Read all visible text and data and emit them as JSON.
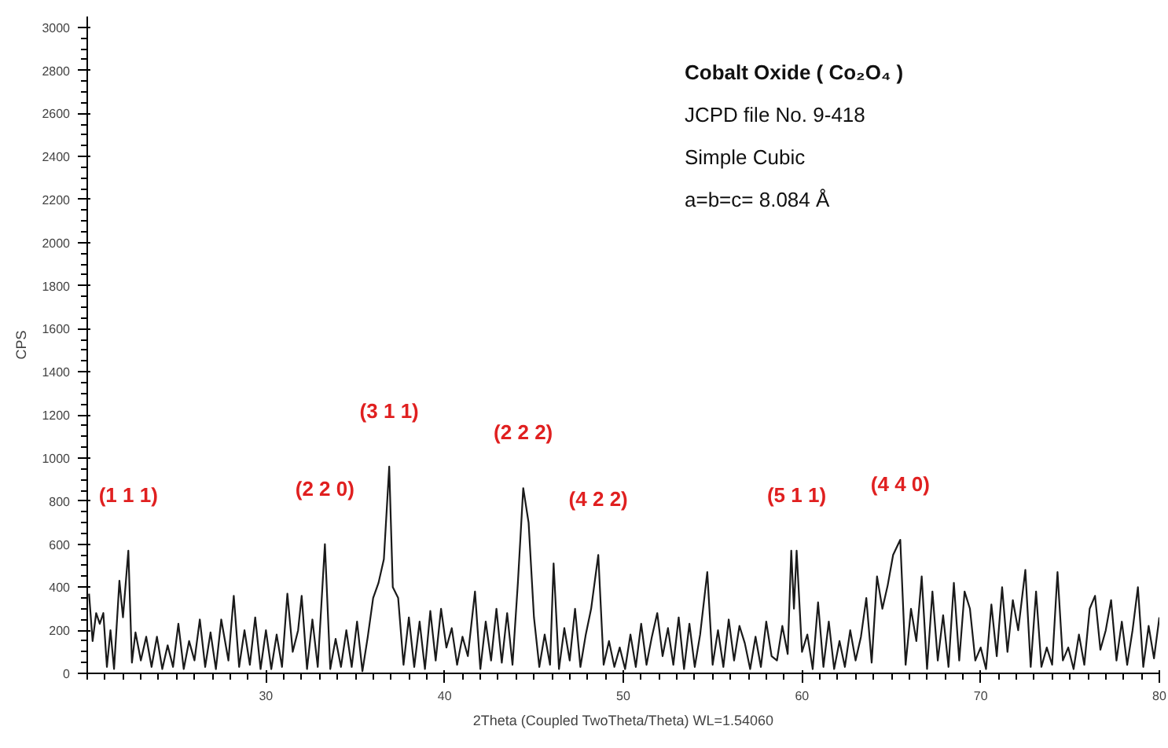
{
  "chart_data": {
    "type": "line",
    "xlabel": "2Theta (Coupled TwoTheta/Theta) WL=1.54060",
    "ylabel": "CPS",
    "xlim": [
      20,
      80
    ],
    "ylim": [
      0,
      3050
    ],
    "xticks": [
      30,
      40,
      50,
      60,
      70,
      80
    ],
    "yticks": [
      0,
      200,
      400,
      600,
      800,
      1000,
      1200,
      1400,
      1600,
      1800,
      2000,
      2200,
      2400,
      2600,
      2800,
      3000
    ],
    "grid": false,
    "marker": "none",
    "line_style": "solid",
    "series": [
      {
        "color": "#1a1a1a",
        "x": [
          20.1,
          20.3,
          20.5,
          20.7,
          20.9,
          21.1,
          21.3,
          21.5,
          21.8,
          22.0,
          22.3,
          22.5,
          22.7,
          23.0,
          23.3,
          23.6,
          23.9,
          24.2,
          24.5,
          24.8,
          25.1,
          25.4,
          25.7,
          26.0,
          26.3,
          26.6,
          26.9,
          27.2,
          27.5,
          27.9,
          28.2,
          28.5,
          28.8,
          29.1,
          29.4,
          29.7,
          30.0,
          30.3,
          30.6,
          30.9,
          31.2,
          31.5,
          31.8,
          32.0,
          32.3,
          32.6,
          32.9,
          33.3,
          33.6,
          33.9,
          34.2,
          34.5,
          34.8,
          35.1,
          35.4,
          35.7,
          36.0,
          36.3,
          36.6,
          36.9,
          37.1,
          37.4,
          37.7,
          38.0,
          38.3,
          38.6,
          38.9,
          39.2,
          39.5,
          39.8,
          40.1,
          40.4,
          40.7,
          41.0,
          41.3,
          41.7,
          42.0,
          42.3,
          42.6,
          42.9,
          43.2,
          43.5,
          43.8,
          44.1,
          44.4,
          44.7,
          45.0,
          45.3,
          45.6,
          45.9,
          46.1,
          46.4,
          46.7,
          47.0,
          47.3,
          47.6,
          47.9,
          48.2,
          48.6,
          48.9,
          49.2,
          49.5,
          49.8,
          50.1,
          50.4,
          50.7,
          51.0,
          51.3,
          51.6,
          51.9,
          52.2,
          52.5,
          52.8,
          53.1,
          53.4,
          53.7,
          54.0,
          54.3,
          54.7,
          55.0,
          55.3,
          55.6,
          55.9,
          56.2,
          56.5,
          56.8,
          57.1,
          57.4,
          57.7,
          58.0,
          58.3,
          58.6,
          58.9,
          59.2,
          59.4,
          59.55,
          59.7,
          60.0,
          60.3,
          60.6,
          60.9,
          61.2,
          61.5,
          61.8,
          62.1,
          62.4,
          62.7,
          63.0,
          63.3,
          63.6,
          63.9,
          64.2,
          64.5,
          64.8,
          65.1,
          65.5,
          65.8,
          66.1,
          66.4,
          66.7,
          67.0,
          67.3,
          67.6,
          67.9,
          68.2,
          68.5,
          68.8,
          69.1,
          69.4,
          69.7,
          70.0,
          70.3,
          70.6,
          70.9,
          71.2,
          71.5,
          71.8,
          72.1,
          72.5,
          72.8,
          73.1,
          73.4,
          73.7,
          74.0,
          74.3,
          74.6,
          74.9,
          75.2,
          75.5,
          75.8,
          76.1,
          76.4,
          76.7,
          77.0,
          77.3,
          77.6,
          77.9,
          78.2,
          78.5,
          78.8,
          79.1,
          79.4,
          79.7,
          80.0
        ],
        "values": [
          370,
          150,
          280,
          230,
          280,
          30,
          200,
          20,
          430,
          260,
          570,
          50,
          190,
          60,
          170,
          30,
          170,
          20,
          130,
          30,
          230,
          20,
          150,
          60,
          250,
          30,
          190,
          20,
          250,
          60,
          360,
          30,
          200,
          40,
          260,
          20,
          200,
          20,
          180,
          30,
          370,
          100,
          200,
          360,
          20,
          250,
          30,
          600,
          20,
          160,
          30,
          200,
          30,
          240,
          10,
          170,
          350,
          420,
          530,
          960,
          400,
          350,
          40,
          260,
          30,
          240,
          20,
          290,
          60,
          300,
          120,
          210,
          40,
          170,
          80,
          380,
          20,
          240,
          60,
          300,
          50,
          280,
          40,
          420,
          860,
          700,
          260,
          30,
          180,
          40,
          510,
          20,
          210,
          60,
          300,
          30,
          180,
          300,
          550,
          40,
          150,
          30,
          120,
          20,
          180,
          30,
          230,
          40,
          170,
          280,
          80,
          210,
          40,
          260,
          20,
          230,
          30,
          180,
          470,
          40,
          200,
          30,
          250,
          60,
          220,
          140,
          20,
          170,
          30,
          240,
          80,
          60,
          220,
          90,
          570,
          300,
          570,
          100,
          180,
          20,
          330,
          30,
          240,
          20,
          150,
          30,
          200,
          60,
          170,
          350,
          50,
          450,
          300,
          410,
          550,
          620,
          40,
          300,
          150,
          450,
          20,
          380,
          60,
          270,
          30,
          420,
          60,
          380,
          300,
          60,
          120,
          20,
          320,
          80,
          400,
          100,
          340,
          200,
          480,
          30,
          380,
          30,
          120,
          40,
          470,
          60,
          120,
          20,
          180,
          40,
          300,
          360,
          110,
          200,
          340,
          60,
          240,
          40,
          200,
          400,
          30,
          220,
          70,
          260
        ]
      }
    ],
    "annotations": [
      {
        "text": "(1 1 1)",
        "x": 22.3,
        "y": 570
      },
      {
        "text": "(2 2 0)",
        "x": 33.3,
        "y": 600
      },
      {
        "text": "(3 1 1)",
        "x": 36.9,
        "y": 960
      },
      {
        "text": "(2 2 2)",
        "x": 44.4,
        "y": 860
      },
      {
        "text": "(4 2 2)",
        "x": 48.6,
        "y": 550
      },
      {
        "text": "(5 1 1)",
        "x": 59.7,
        "y": 570
      },
      {
        "text": "(4 4 0)",
        "x": 65.5,
        "y": 620
      },
      "Cobalt Oxide ( Co₂O₄ )",
      "JCPD file No.  9-418",
      "Simple Cubic",
      "a=b=c=  8.084  Å"
    ]
  }
}
